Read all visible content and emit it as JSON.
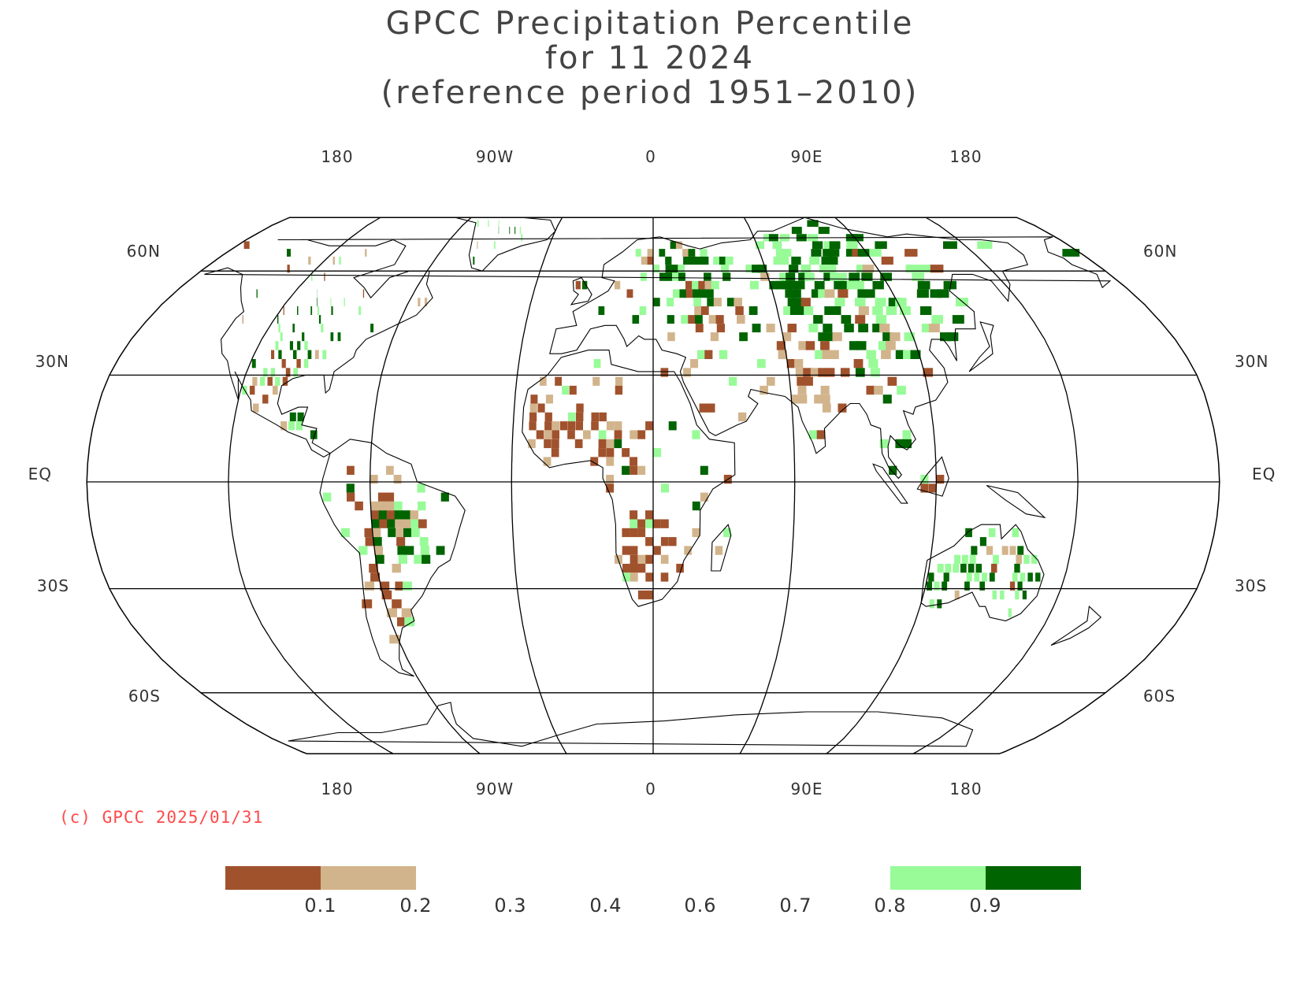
{
  "title": {
    "line1": "GPCC Precipitation Percentile",
    "line2": "for 11 2024",
    "line3": "(reference period 1951–2010)"
  },
  "map": {
    "projection": "robinson",
    "lon_labels": [
      "180",
      "90W",
      "0",
      "90E",
      "180"
    ],
    "lat_labels": [
      "60N",
      "30N",
      "EQ",
      "30S",
      "60S"
    ],
    "land_color": "#ffffff",
    "line_color": "#000000"
  },
  "copyright": "(c) GPCC 2025/01/31",
  "legend": {
    "tick_labels": [
      "0.1",
      "0.2",
      "0.3",
      "0.4",
      "0.6",
      "0.7",
      "0.8",
      "0.9"
    ],
    "colors": {
      "below_0.1": "#a0522d",
      "0.1_to_0.2": "#d2b48c",
      "0.8_to_0.9": "#98fb98",
      "above_0.9": "#006400"
    }
  }
}
